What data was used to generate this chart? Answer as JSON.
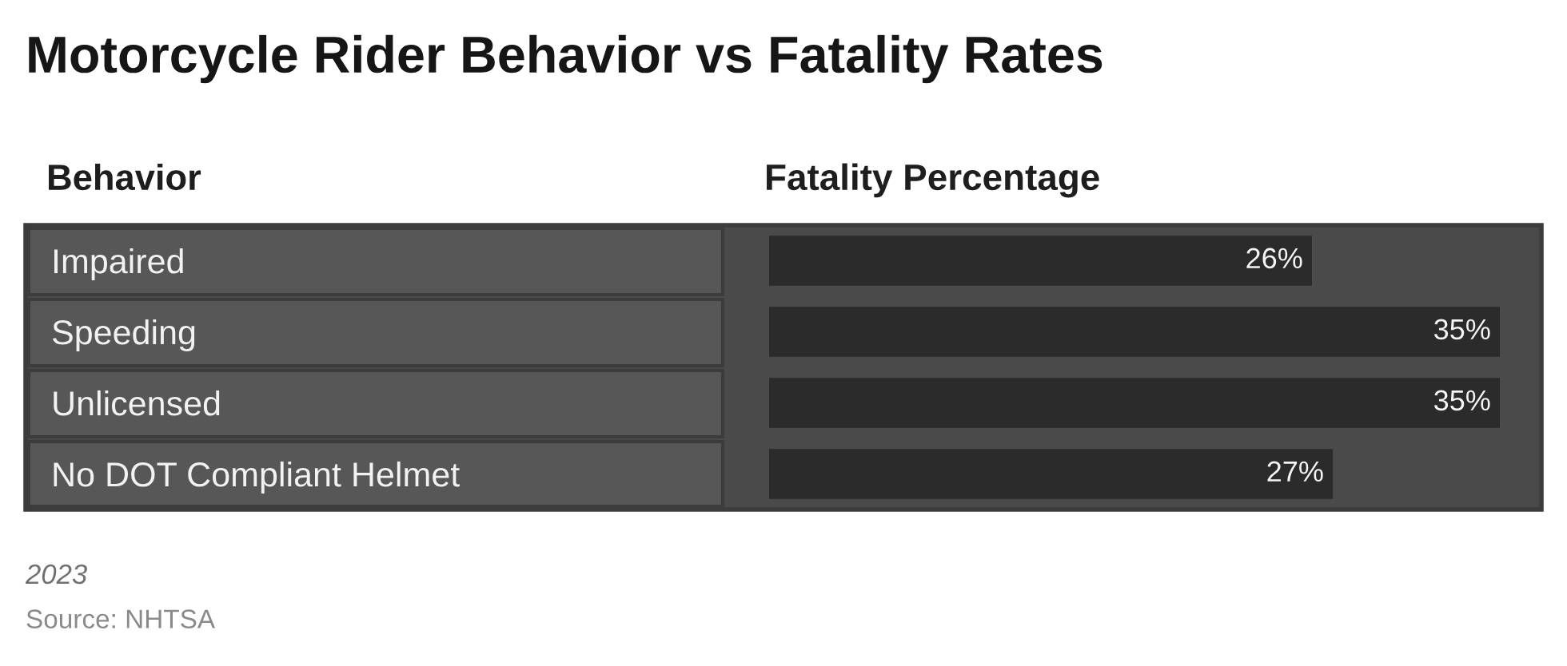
{
  "chart_data": {
    "type": "bar",
    "orientation": "horizontal",
    "title": "Motorcycle Rider Behavior vs Fatality Rates",
    "ylabel": "Behavior",
    "xlabel": "Fatality Percentage",
    "categories": [
      "Impaired",
      "Speeding",
      "Unlicensed",
      "No DOT Compliant Helmet"
    ],
    "values": [
      26,
      35,
      35,
      27
    ],
    "value_labels": [
      "26%",
      "35%",
      "35%",
      "27%"
    ],
    "color": "#2b2b2b",
    "xlim": [
      0,
      35
    ],
    "tick_labels": "y",
    "annotations": [
      "2023",
      "Source: NHTSA"
    ]
  }
}
